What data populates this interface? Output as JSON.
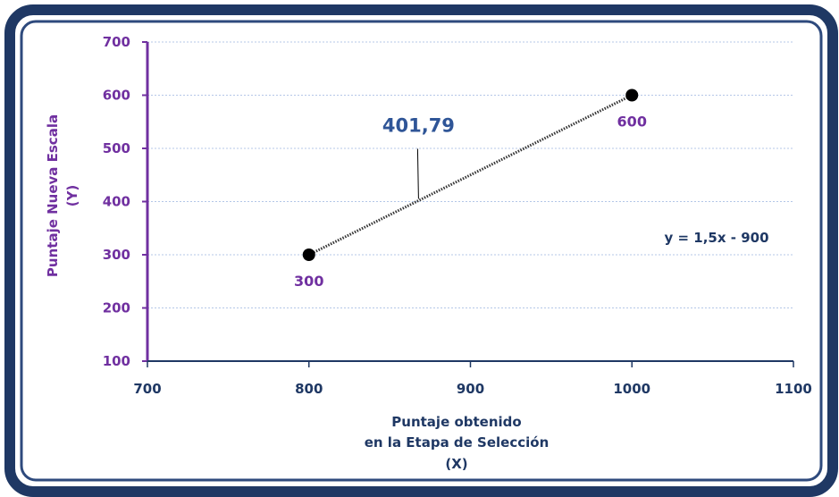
{
  "chart_data": {
    "type": "line",
    "x": [
      800,
      1000
    ],
    "y": [
      300,
      600
    ],
    "xlim": [
      700,
      1100
    ],
    "ylim": [
      100,
      700
    ],
    "x_ticks": [
      "700",
      "800",
      "900",
      "1000",
      "1100"
    ],
    "y_ticks": [
      "100",
      "200",
      "300",
      "400",
      "500",
      "600",
      "700"
    ],
    "xlabel_lines": [
      "Puntaje obtenido",
      "en la Etapa de Selección",
      "(X)"
    ],
    "ylabel_lines": [
      "Puntaje Nueva Escala",
      "(Y)"
    ],
    "point_labels": [
      "300",
      "600"
    ],
    "callout": {
      "text": "401,79",
      "x": 867.86,
      "y": 401.79
    },
    "equation": "y = 1,5x - 900",
    "grid": true,
    "colors": {
      "frame_outer": "#1f3864",
      "frame_inner": "#2e4a7d",
      "y_axis": "#7030a0",
      "x_axis": "#1f3864",
      "gridline": "#b4c7e7",
      "line": "#333333",
      "point": "#000000"
    }
  }
}
